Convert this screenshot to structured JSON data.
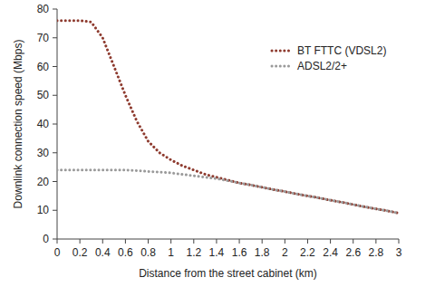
{
  "chart_data": {
    "type": "line",
    "x_label": "Distance from the street cabinet (km)",
    "y_label": "Downlink connection speed (Mbps)",
    "x": [
      0,
      0.1,
      0.2,
      0.3,
      0.4,
      0.5,
      0.6,
      0.7,
      0.8,
      0.9,
      1,
      1.1,
      1.2,
      1.3,
      1.4,
      1.5,
      1.6,
      1.7,
      1.8,
      1.9,
      2,
      2.1,
      2.2,
      2.3,
      2.4,
      2.5,
      2.6,
      2.7,
      2.8,
      2.9,
      3
    ],
    "series": [
      {
        "name": "BT FTTC (VDSL2)",
        "color": "#8e3b2f",
        "line_style": "dotted",
        "values": [
          76,
          76,
          76,
          75.5,
          70,
          60,
          50,
          41,
          34,
          30,
          27.5,
          25.5,
          24,
          22.5,
          21.5,
          20.5,
          19.5,
          18.8,
          18,
          17.2,
          16.5,
          15.7,
          15,
          14.3,
          13.5,
          12.8,
          12,
          11.2,
          10.5,
          9.8,
          9
        ]
      },
      {
        "name": "ADSL2/2+",
        "color": "#9a9a9a",
        "line_style": "dotted",
        "values": [
          24,
          24,
          24,
          24,
          24,
          24,
          24,
          23.8,
          23.5,
          23.3,
          23,
          22.5,
          22,
          21.5,
          21,
          20.3,
          19.5,
          18.8,
          18,
          17.2,
          16.5,
          15.7,
          15,
          14.3,
          13.5,
          12.8,
          12,
          11.2,
          10.5,
          9.8,
          9
        ]
      }
    ],
    "xlim": [
      0,
      3
    ],
    "ylim": [
      0,
      80
    ],
    "xticks": [
      0,
      0.2,
      0.4,
      0.6,
      0.8,
      1,
      1.2,
      1.4,
      1.6,
      1.8,
      2,
      2.2,
      2.4,
      2.6,
      2.8,
      3
    ],
    "yticks": [
      0,
      10,
      20,
      30,
      40,
      50,
      60,
      70,
      80
    ],
    "grid": false,
    "legend": "upper right"
  }
}
